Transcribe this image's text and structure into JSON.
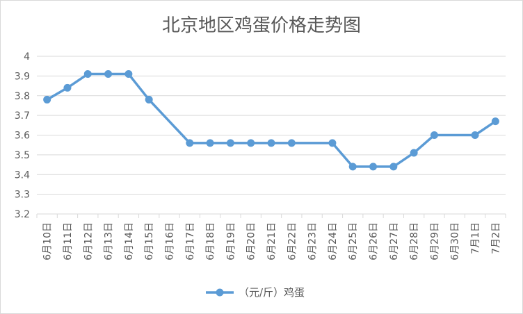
{
  "chart_data": {
    "type": "line",
    "title": "北京地区鸡蛋价格走势图",
    "xlabel": "",
    "ylabel": "",
    "categories": [
      "6月10日",
      "6月11日",
      "6月12日",
      "6月13日",
      "6月14日",
      "6月15日",
      "6月16日",
      "6月17日",
      "6月18日",
      "6月19日",
      "6月20日",
      "6月21日",
      "6月22日",
      "6月23日",
      "6月24日",
      "6月25日",
      "6月26日",
      "6月27日",
      "6月28日",
      "6月29日",
      "6月30日",
      "7月1日",
      "7月2日"
    ],
    "series": [
      {
        "name": "（元/斤）鸡蛋",
        "values": [
          3.78,
          3.84,
          3.91,
          3.91,
          3.91,
          3.78,
          null,
          3.56,
          3.56,
          3.56,
          3.56,
          3.56,
          3.56,
          null,
          3.56,
          3.44,
          3.44,
          3.44,
          3.51,
          3.6,
          null,
          3.6,
          3.67
        ]
      }
    ],
    "ylim": [
      3.2,
      4.0
    ],
    "yticks": [
      "3.2",
      "3.3",
      "3.4",
      "3.5",
      "3.6",
      "3.7",
      "3.8",
      "3.9",
      "4"
    ],
    "grid": true,
    "legend_position": "bottom",
    "colors": {
      "series": "#5b9bd5",
      "grid": "#d9d9d9",
      "axis_text": "#595959"
    }
  }
}
